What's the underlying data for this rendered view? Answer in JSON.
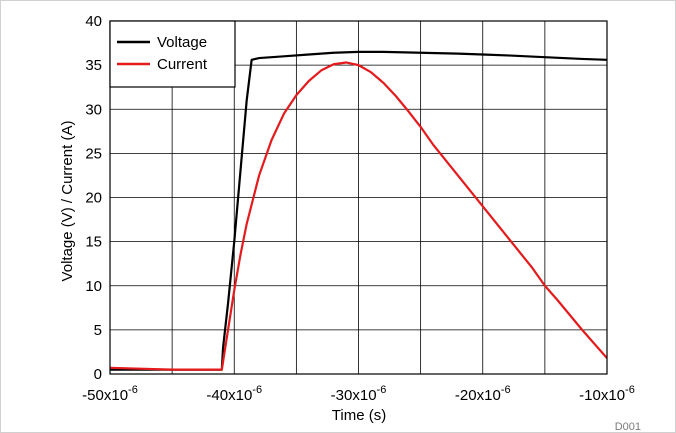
{
  "chart_data": {
    "type": "line",
    "xlabel": "Time (s)",
    "ylabel": "Voltage (V) / Current (A)",
    "figure_id": "D001",
    "xlim": [
      -5e-05,
      -1e-05
    ],
    "ylim": [
      0,
      40
    ],
    "grid": true,
    "legend_position": "top-left",
    "x_ticks": [
      {
        "value": -5e-05,
        "mantissa": "-50x10",
        "exp": "-6"
      },
      {
        "value": -4e-05,
        "mantissa": "-40x10",
        "exp": "-6"
      },
      {
        "value": -3e-05,
        "mantissa": "-30x10",
        "exp": "-6"
      },
      {
        "value": -2e-05,
        "mantissa": "-20x10",
        "exp": "-6"
      },
      {
        "value": -1e-05,
        "mantissa": "-10x10",
        "exp": "-6"
      }
    ],
    "y_ticks": [
      0,
      5,
      10,
      15,
      20,
      25,
      30,
      35,
      40
    ],
    "series": [
      {
        "name": "Voltage",
        "color": "#000000",
        "x": [
          -5e-05,
          -4.5e-05,
          -4.1e-05,
          -4.09e-05,
          -4.05e-05,
          -4e-05,
          -3.95e-05,
          -3.9e-05,
          -3.86e-05,
          -3.8e-05,
          -3.6e-05,
          -3.4e-05,
          -3.2e-05,
          -3e-05,
          -2.8e-05,
          -2.5e-05,
          -2.2e-05,
          -2e-05,
          -1.8e-05,
          -1.5e-05,
          -1.2e-05,
          -1e-05
        ],
        "y": [
          0.5,
          0.5,
          0.5,
          3.0,
          8.0,
          15.0,
          23.0,
          31.0,
          35.6,
          35.8,
          36.0,
          36.2,
          36.4,
          36.5,
          36.5,
          36.4,
          36.3,
          36.2,
          36.1,
          35.9,
          35.7,
          35.6
        ]
      },
      {
        "name": "Current",
        "color": "#e41a1c",
        "x": [
          -5e-05,
          -4.5e-05,
          -4.1e-05,
          -4.05e-05,
          -4e-05,
          -3.95e-05,
          -3.9e-05,
          -3.8e-05,
          -3.7e-05,
          -3.6e-05,
          -3.5e-05,
          -3.4e-05,
          -3.3e-05,
          -3.2e-05,
          -3.1e-05,
          -3e-05,
          -2.9e-05,
          -2.8e-05,
          -2.7e-05,
          -2.6e-05,
          -2.5e-05,
          -2.4e-05,
          -2.2e-05,
          -2e-05,
          -1.8e-05,
          -1.6e-05,
          -1.5e-05,
          -1.4e-05,
          -1.2e-05,
          -1e-05
        ],
        "y": [
          0.7,
          0.5,
          0.5,
          5.0,
          9.5,
          13.5,
          17.0,
          22.5,
          26.5,
          29.5,
          31.6,
          33.2,
          34.4,
          35.1,
          35.3,
          35.0,
          34.2,
          33.0,
          31.5,
          29.8,
          28.0,
          26.0,
          22.5,
          19.0,
          15.5,
          12.0,
          10.0,
          8.4,
          5.0,
          1.8
        ]
      }
    ]
  }
}
